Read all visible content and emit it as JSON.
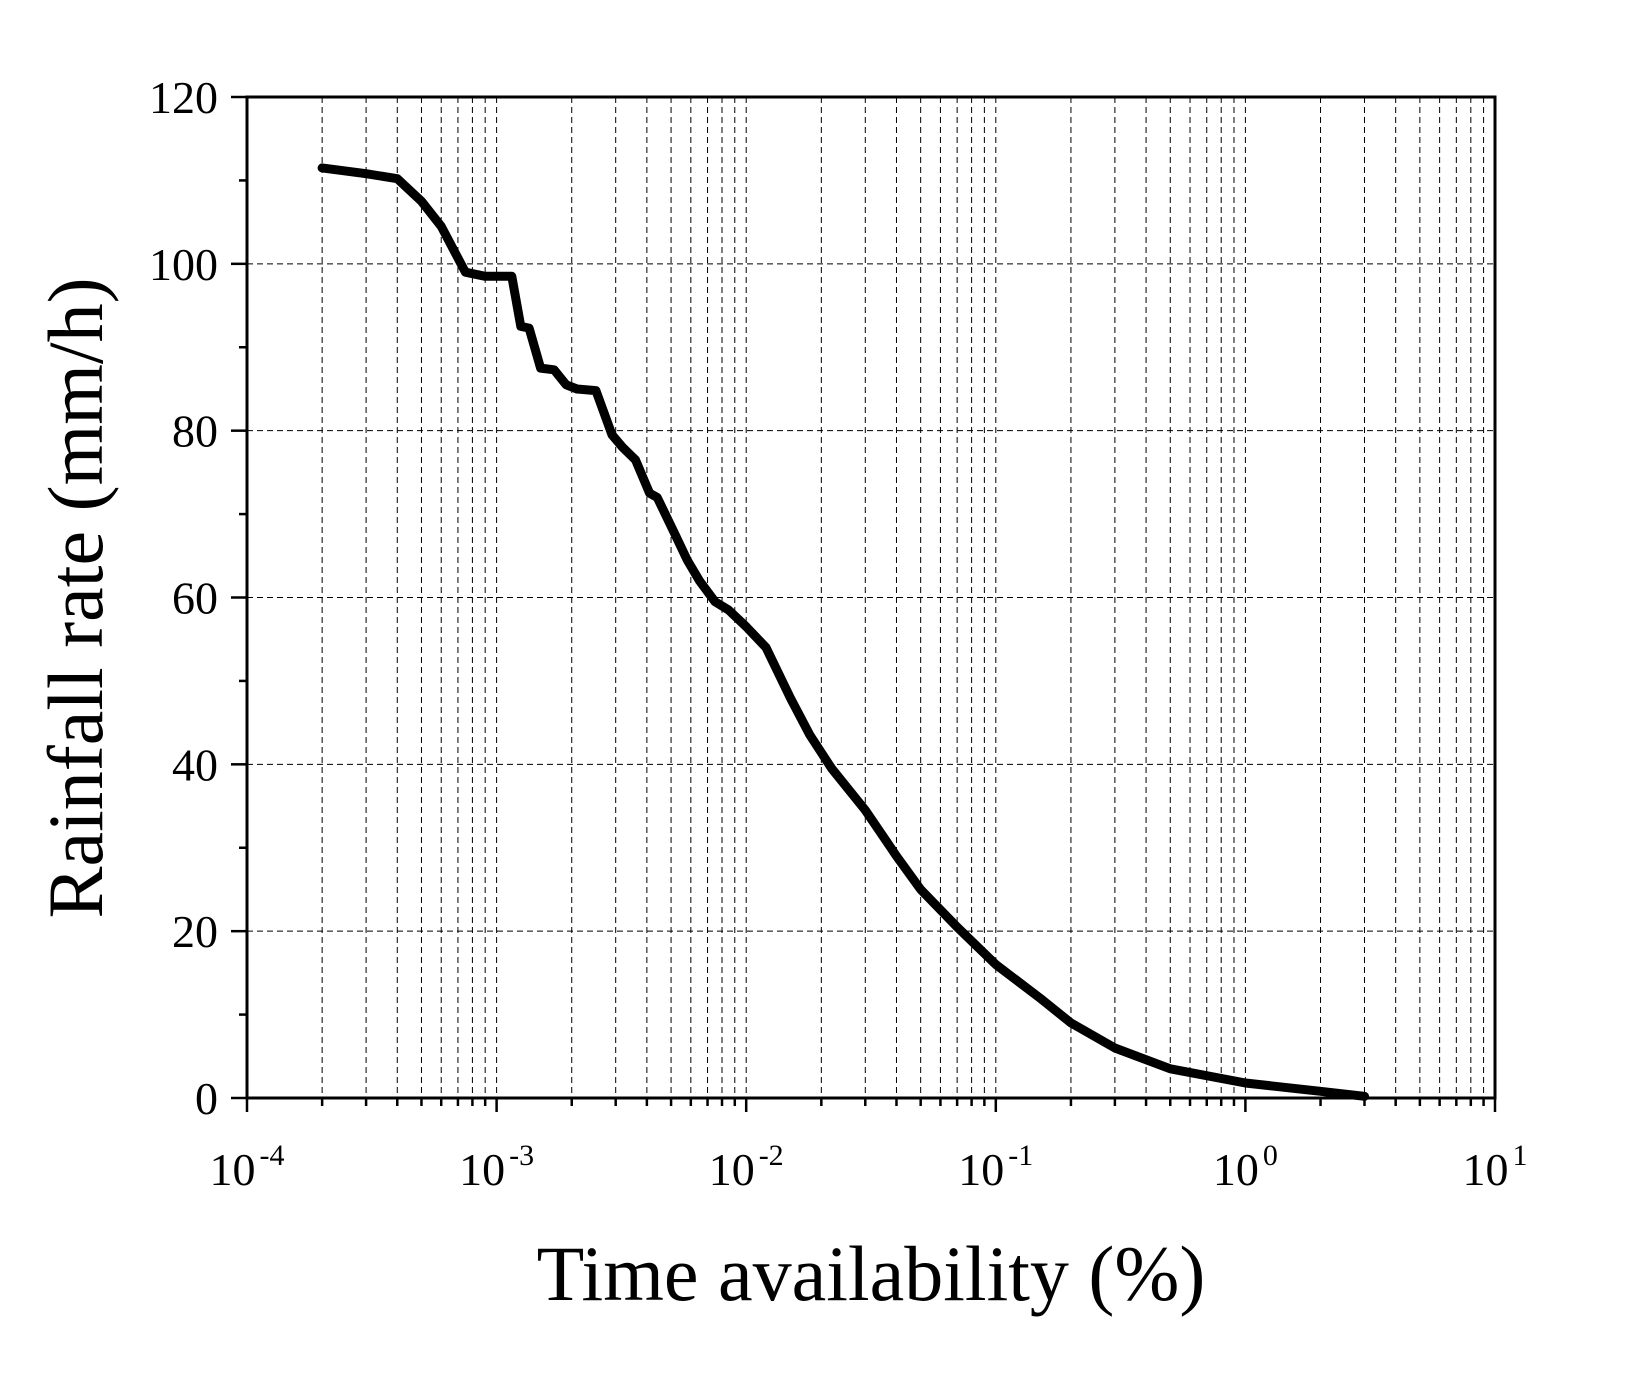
{
  "chart_data": {
    "type": "line",
    "xlabel": "Time availability (%)",
    "ylabel": "Rainfall rate (mm/h)",
    "x_scale": "log",
    "xlim": [
      0.0001,
      10
    ],
    "ylim": [
      0,
      120
    ],
    "x_ticks": [
      {
        "base": "10",
        "exp": "-4",
        "value": 0.0001
      },
      {
        "base": "10",
        "exp": "-3",
        "value": 0.001
      },
      {
        "base": "10",
        "exp": "-2",
        "value": 0.01
      },
      {
        "base": "10",
        "exp": "-1",
        "value": 0.1
      },
      {
        "base": "10",
        "exp": "0",
        "value": 1
      },
      {
        "base": "10",
        "exp": "1",
        "value": 10
      }
    ],
    "y_ticks": [
      "0",
      "20",
      "40",
      "60",
      "80",
      "100",
      "120"
    ],
    "grid": true,
    "series": [
      {
        "x": [
          0.0002,
          0.0003,
          0.0004,
          0.0005,
          0.0006,
          0.00075,
          0.0009,
          0.00115,
          0.00125,
          0.00135,
          0.0015,
          0.0017,
          0.0019,
          0.0021,
          0.0025,
          0.0029,
          0.0032,
          0.0036,
          0.0041,
          0.0044,
          0.0052,
          0.0058,
          0.0065,
          0.0075,
          0.0085,
          0.01,
          0.012,
          0.015,
          0.018,
          0.022,
          0.03,
          0.04,
          0.05,
          0.07,
          0.1,
          0.15,
          0.2,
          0.3,
          0.5,
          1.0,
          2.0,
          3.0
        ],
        "y": [
          111.5,
          110.8,
          110.2,
          107.5,
          104.5,
          99.0,
          98.5,
          98.5,
          92.5,
          92.3,
          87.5,
          87.3,
          85.5,
          85.0,
          84.8,
          79.5,
          78.0,
          76.5,
          72.5,
          72.0,
          67.5,
          64.5,
          62.0,
          59.5,
          58.5,
          56.5,
          54.0,
          48.0,
          43.5,
          39.5,
          34.5,
          29.0,
          25.0,
          20.5,
          16.0,
          12.0,
          9.0,
          6.0,
          3.5,
          1.8,
          0.8,
          0.2
        ]
      }
    ]
  }
}
